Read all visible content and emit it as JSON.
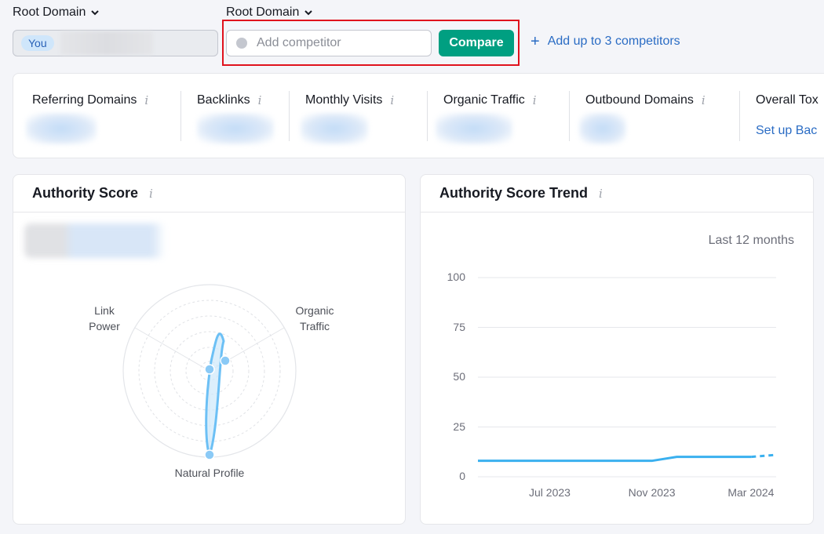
{
  "compare_bar": {
    "root_domain_label_1": "Root Domain",
    "root_domain_label_2": "Root Domain",
    "you_badge": "You",
    "competitor_placeholder": "Add competitor",
    "compare_button": "Compare",
    "add_link": "Add up to 3 competitors",
    "add_icon": "plus-icon",
    "dropdown_icon": "chevron-down-icon"
  },
  "metrics": [
    {
      "label": "Referring Domains"
    },
    {
      "label": "Backlinks"
    },
    {
      "label": "Monthly Visits"
    },
    {
      "label": "Organic Traffic"
    },
    {
      "label": "Outbound Domains"
    },
    {
      "label": "Overall Tox",
      "link": "Set up Bac"
    }
  ],
  "authority_card": {
    "title": "Authority Score",
    "radar_labels": {
      "link_power_1": "Link",
      "link_power_2": "Power",
      "organic_traffic_1": "Organic",
      "organic_traffic_2": "Traffic",
      "natural_profile": "Natural Profile"
    }
  },
  "trend_card": {
    "title": "Authority Score Trend",
    "period": "Last 12 months"
  },
  "chart_data": {
    "type": "line",
    "title": "Authority Score Trend",
    "ylim": [
      0,
      100
    ],
    "y_ticks": [
      "100",
      "75",
      "50",
      "25",
      "0"
    ],
    "x_ticks": [
      "Jul 2023",
      "Nov 2023",
      "Mar 2024"
    ],
    "grid": true,
    "series": [
      {
        "color": "#3ab0ef",
        "points": [
          {
            "x": "2023-04",
            "y": 8
          },
          {
            "x": "2023-05",
            "y": 8
          },
          {
            "x": "2023-06",
            "y": 8
          },
          {
            "x": "2023-07",
            "y": 8
          },
          {
            "x": "2023-08",
            "y": 8
          },
          {
            "x": "2023-09",
            "y": 8
          },
          {
            "x": "2023-10",
            "y": 8
          },
          {
            "x": "2023-11",
            "y": 8
          },
          {
            "x": "2023-12",
            "y": 10
          },
          {
            "x": "2024-01",
            "y": 10
          },
          {
            "x": "2024-02",
            "y": 10
          },
          {
            "x": "2024-03",
            "y": 10
          },
          {
            "x": "2024-04",
            "y": 11
          }
        ],
        "projected_from": "2024-03"
      }
    ]
  },
  "colors": {
    "accent": "#009f81",
    "link": "#2a6cc4",
    "highlight": "#e0121d",
    "series": "#3ab0ef"
  }
}
